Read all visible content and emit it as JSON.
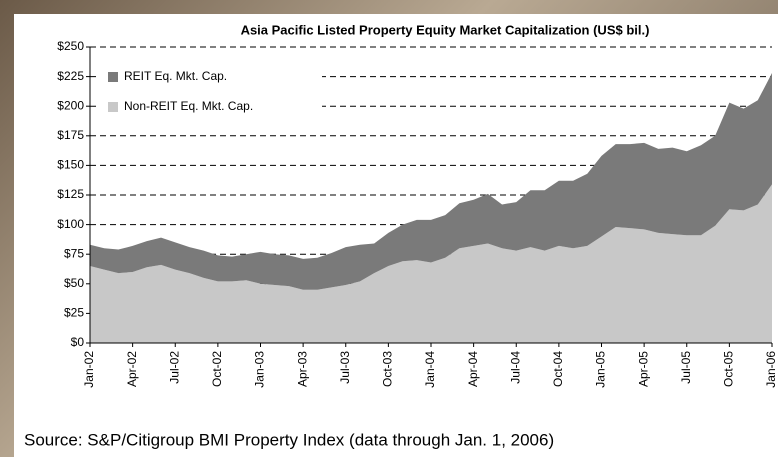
{
  "chart_data": {
    "type": "stacked_area",
    "title": "Asia Pacific Listed Property Equity Market Capitalization (US$ bil.)",
    "source": "Source: S&P/Citigroup BMI Property Index (data through Jan. 1, 2006)",
    "categories": [
      "Jan-02",
      null,
      null,
      "Apr-02",
      null,
      null,
      "Jul-02",
      null,
      null,
      "Oct-02",
      null,
      null,
      "Jan-03",
      null,
      null,
      "Apr-03",
      null,
      null,
      "Jul-03",
      null,
      null,
      "Oct-03",
      null,
      null,
      "Jan-04",
      null,
      null,
      "Apr-04",
      null,
      null,
      "Jul-04",
      null,
      null,
      "Oct-04",
      null,
      null,
      "Jan-05",
      null,
      null,
      "Apr-05",
      null,
      null,
      "Jul-05",
      null,
      null,
      "Oct-05",
      null,
      null,
      "Jan-06"
    ],
    "series": [
      {
        "name": "REIT Eq. Mkt. Cap.",
        "color": "#7a7a7a",
        "values": [
          18,
          18,
          20,
          22,
          22,
          23,
          23,
          22,
          23,
          22,
          21,
          22,
          27,
          26,
          26,
          26,
          27,
          29,
          32,
          31,
          25,
          28,
          31,
          34,
          36,
          36,
          38,
          39,
          42,
          37,
          41,
          48,
          51,
          55,
          57,
          61,
          68,
          70,
          71,
          73,
          71,
          73,
          71,
          76,
          76,
          90,
          86,
          88,
          94
        ]
      },
      {
        "name": "Non-REIT Eq. Mkt. Cap.",
        "color": "#c8c8c8",
        "values": [
          65,
          62,
          59,
          60,
          64,
          66,
          62,
          59,
          55,
          52,
          52,
          53,
          50,
          49,
          48,
          45,
          45,
          47,
          49,
          52,
          59,
          65,
          69,
          70,
          68,
          72,
          80,
          82,
          84,
          80,
          78,
          81,
          78,
          82,
          80,
          82,
          90,
          98,
          97,
          96,
          93,
          92,
          91,
          91,
          99,
          113,
          112,
          117,
          134
        ]
      }
    ],
    "ylim": [
      0,
      250
    ],
    "yticks": [
      {
        "value": 0,
        "label": "$0"
      },
      {
        "value": 25,
        "label": "$25"
      },
      {
        "value": 50,
        "label": "$50"
      },
      {
        "value": 75,
        "label": "$75"
      },
      {
        "value": 100,
        "label": "$100"
      },
      {
        "value": 125,
        "label": "$125"
      },
      {
        "value": 150,
        "label": "$150"
      },
      {
        "value": 175,
        "label": "$175"
      },
      {
        "value": 200,
        "label": "$200"
      },
      {
        "value": 225,
        "label": "$225"
      },
      {
        "value": 250,
        "label": "$250"
      }
    ],
    "grid": true,
    "legend": "upper left"
  }
}
